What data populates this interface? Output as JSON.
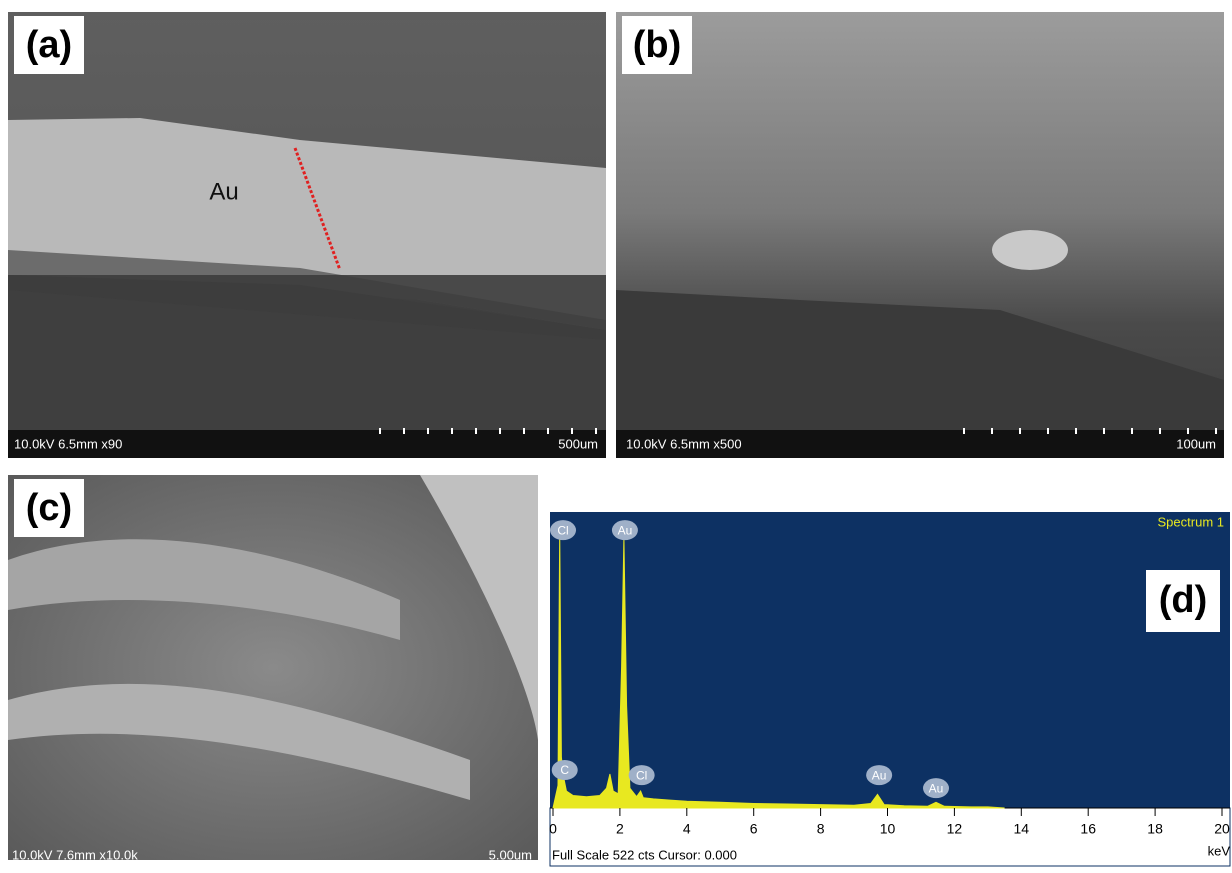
{
  "panels": [
    {
      "label": "(a)",
      "annotation": "Au",
      "info": "10.0kV 6.5mm x90",
      "scale": "500um"
    },
    {
      "label": "(b)",
      "info": "10.0kV 6.5mm x500",
      "scale": "100um"
    },
    {
      "label": "(c)",
      "info": "10.0kV 7.6mm x10.0k",
      "scale": "5.00um"
    }
  ],
  "chart_data": {
    "type": "area",
    "label": "(d)",
    "title": "Spectrum 1",
    "x_unit": "keV",
    "footer": "Full Scale 522 cts Cursor: 0.000",
    "xlim": [
      0,
      20
    ],
    "ylim": [
      0,
      522
    ],
    "xticks": [
      0,
      2,
      4,
      6,
      8,
      10,
      12,
      14,
      16,
      18,
      20
    ],
    "x": [
      0,
      0.15,
      0.2,
      0.25,
      0.3,
      0.4,
      0.6,
      1.0,
      1.4,
      1.6,
      1.7,
      1.8,
      1.95,
      2.05,
      2.12,
      2.2,
      2.3,
      2.5,
      2.62,
      2.7,
      3.0,
      3.5,
      4,
      5,
      6,
      7,
      8,
      9,
      9.5,
      9.7,
      9.9,
      10.5,
      11.2,
      11.45,
      11.7,
      12.5,
      13,
      13.5
    ],
    "values": [
      0,
      40,
      490,
      90,
      60,
      30,
      22,
      20,
      22,
      35,
      60,
      30,
      25,
      250,
      477,
      180,
      35,
      20,
      30,
      18,
      16,
      14,
      12,
      10,
      8,
      7,
      6,
      5,
      8,
      24,
      6,
      4,
      3,
      10,
      3,
      2,
      2,
      0
    ],
    "color": "#e8e820",
    "peak_labels": [
      {
        "text": "Cl",
        "x": 0.3,
        "y": 490
      },
      {
        "text": "Au",
        "x": 2.15,
        "y": 490
      },
      {
        "text": "C",
        "x": 0.35,
        "y": 67
      },
      {
        "text": "Cl",
        "x": 2.65,
        "y": 58
      },
      {
        "text": "Au",
        "x": 9.75,
        "y": 58
      },
      {
        "text": "Au",
        "x": 11.45,
        "y": 35
      }
    ]
  }
}
